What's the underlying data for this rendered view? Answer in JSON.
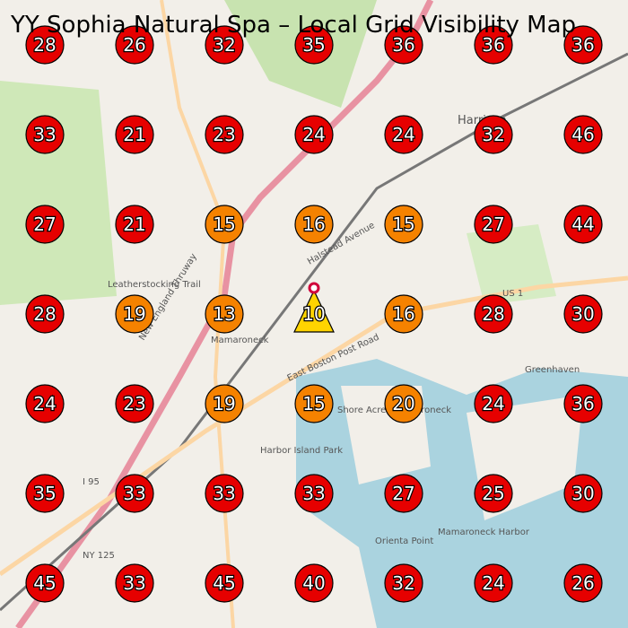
{
  "title": "YY Sophia Natural Spa – Local Grid Visibility Map",
  "grid": {
    "rows": [
      [
        {
          "value": 28,
          "color": "#e60000"
        },
        {
          "value": 26,
          "color": "#e60000"
        },
        {
          "value": 32,
          "color": "#e60000"
        },
        {
          "value": 35,
          "color": "#e60000"
        },
        {
          "value": 36,
          "color": "#e60000"
        },
        {
          "value": 36,
          "color": "#e60000"
        },
        {
          "value": 36,
          "color": "#e60000"
        }
      ],
      [
        {
          "value": 33,
          "color": "#e60000"
        },
        {
          "value": 21,
          "color": "#e60000"
        },
        {
          "value": 23,
          "color": "#e60000"
        },
        {
          "value": 24,
          "color": "#e60000"
        },
        {
          "value": 24,
          "color": "#e60000"
        },
        {
          "value": 32,
          "color": "#e60000"
        },
        {
          "value": 46,
          "color": "#e60000"
        }
      ],
      [
        {
          "value": 27,
          "color": "#e60000"
        },
        {
          "value": 21,
          "color": "#e60000"
        },
        {
          "value": 15,
          "color": "#f58200"
        },
        {
          "value": 16,
          "color": "#f58200"
        },
        {
          "value": 15,
          "color": "#f58200"
        },
        {
          "value": 27,
          "color": "#e60000"
        },
        {
          "value": 44,
          "color": "#e60000"
        }
      ],
      [
        {
          "value": 28,
          "color": "#e60000"
        },
        {
          "value": 19,
          "color": "#f58200"
        },
        {
          "value": 13,
          "color": "#f58200"
        },
        {
          "value": 10,
          "color": "#ffd400",
          "shape": "triangle"
        },
        {
          "value": 16,
          "color": "#f58200"
        },
        {
          "value": 28,
          "color": "#e60000"
        },
        {
          "value": 30,
          "color": "#e60000"
        }
      ],
      [
        {
          "value": 24,
          "color": "#e60000"
        },
        {
          "value": 23,
          "color": "#e60000"
        },
        {
          "value": 19,
          "color": "#f58200"
        },
        {
          "value": 15,
          "color": "#f58200"
        },
        {
          "value": 20,
          "color": "#f58200"
        },
        {
          "value": 24,
          "color": "#e60000"
        },
        {
          "value": 36,
          "color": "#e60000"
        }
      ],
      [
        {
          "value": 35,
          "color": "#e60000"
        },
        {
          "value": 33,
          "color": "#e60000"
        },
        {
          "value": 33,
          "color": "#e60000"
        },
        {
          "value": 33,
          "color": "#e60000"
        },
        {
          "value": 27,
          "color": "#e60000"
        },
        {
          "value": 25,
          "color": "#e60000"
        },
        {
          "value": 30,
          "color": "#e60000"
        }
      ],
      [
        {
          "value": 45,
          "color": "#e60000"
        },
        {
          "value": 33,
          "color": "#e60000"
        },
        {
          "value": 45,
          "color": "#e60000"
        },
        {
          "value": 40,
          "color": "#e60000"
        },
        {
          "value": 32,
          "color": "#e60000"
        },
        {
          "value": 24,
          "color": "#e60000"
        },
        {
          "value": 26,
          "color": "#e60000"
        }
      ]
    ]
  },
  "map": {
    "labels": [
      "Mamaroneck",
      "Harrison",
      "Greenhaven",
      "Orienta Point",
      "Mamaroneck Harbor",
      "New England Thruway",
      "East Boston Post Road",
      "I 95",
      "US 1",
      "NY 125",
      "Harbor Island Park",
      "Leatherstocking Trail",
      "Shore Acres Mamaroneck",
      "Halstead Avenue"
    ]
  }
}
